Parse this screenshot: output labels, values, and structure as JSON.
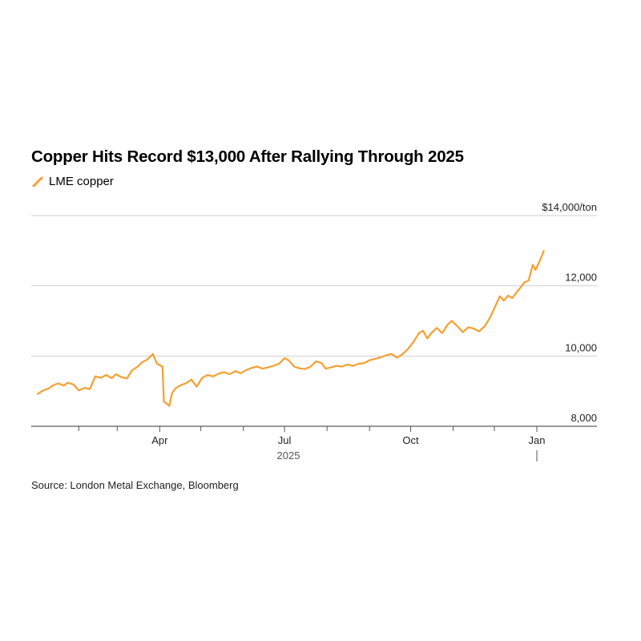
{
  "chart_data": {
    "type": "line",
    "title": "Copper Hits Record $13,000 After Rallying Through 2025",
    "legend": "top-left",
    "unit": "$14,000/ton",
    "ylim": [
      8000,
      14000
    ],
    "y_ticks": [
      {
        "value": 14000,
        "label": "$14,000/ton"
      },
      {
        "value": 12000,
        "label": "12,000"
      },
      {
        "value": 10000,
        "label": "10,000"
      },
      {
        "value": 8000,
        "label": "8,000"
      }
    ],
    "x_ticks": [
      {
        "date": "2025-04-01",
        "label": "Apr"
      },
      {
        "date": "2025-07-01",
        "label": "Jul"
      },
      {
        "date": "2025-10-01",
        "label": "Oct"
      },
      {
        "date": "2026-01-01",
        "label": "Jan"
      }
    ],
    "minor_x_ticks": [
      "2025-02-01",
      "2025-03-01",
      "2025-05-01",
      "2025-06-01",
      "2025-08-01",
      "2025-09-01",
      "2025-11-01",
      "2025-12-01"
    ],
    "year_label": "2025",
    "xlim": [
      "2025-01-02",
      "2026-01-08"
    ],
    "grid": true,
    "series": [
      {
        "name": "LME copper",
        "color": "#f5a030",
        "points": [
          [
            "2025-01-02",
            8920
          ],
          [
            "2025-01-06",
            9020
          ],
          [
            "2025-01-10",
            9080
          ],
          [
            "2025-01-14",
            9180
          ],
          [
            "2025-01-17",
            9220
          ],
          [
            "2025-01-21",
            9160
          ],
          [
            "2025-01-24",
            9240
          ],
          [
            "2025-01-28",
            9190
          ],
          [
            "2025-02-01",
            9020
          ],
          [
            "2025-02-05",
            9090
          ],
          [
            "2025-02-09",
            9060
          ],
          [
            "2025-02-13",
            9420
          ],
          [
            "2025-02-17",
            9380
          ],
          [
            "2025-02-21",
            9460
          ],
          [
            "2025-02-25",
            9370
          ],
          [
            "2025-02-28",
            9480
          ],
          [
            "2025-03-04",
            9400
          ],
          [
            "2025-03-08",
            9360
          ],
          [
            "2025-03-12",
            9600
          ],
          [
            "2025-03-16",
            9700
          ],
          [
            "2025-03-19",
            9820
          ],
          [
            "2025-03-23",
            9900
          ],
          [
            "2025-03-27",
            10060
          ],
          [
            "2025-03-30",
            9780
          ],
          [
            "2025-04-03",
            9700
          ],
          [
            "2025-04-04",
            8700
          ],
          [
            "2025-04-06",
            8650
          ],
          [
            "2025-04-08",
            8580
          ],
          [
            "2025-04-10",
            8950
          ],
          [
            "2025-04-13",
            9100
          ],
          [
            "2025-04-17",
            9180
          ],
          [
            "2025-04-21",
            9240
          ],
          [
            "2025-04-24",
            9330
          ],
          [
            "2025-04-28",
            9130
          ],
          [
            "2025-05-02",
            9380
          ],
          [
            "2025-05-06",
            9460
          ],
          [
            "2025-05-10",
            9420
          ],
          [
            "2025-05-14",
            9500
          ],
          [
            "2025-05-18",
            9540
          ],
          [
            "2025-05-22",
            9480
          ],
          [
            "2025-05-26",
            9570
          ],
          [
            "2025-05-30",
            9510
          ],
          [
            "2025-06-03",
            9600
          ],
          [
            "2025-06-07",
            9660
          ],
          [
            "2025-06-11",
            9700
          ],
          [
            "2025-06-15",
            9640
          ],
          [
            "2025-06-19",
            9680
          ],
          [
            "2025-06-23",
            9720
          ],
          [
            "2025-06-27",
            9780
          ],
          [
            "2025-07-01",
            9940
          ],
          [
            "2025-07-04",
            9880
          ],
          [
            "2025-07-08",
            9700
          ],
          [
            "2025-07-12",
            9650
          ],
          [
            "2025-07-16",
            9630
          ],
          [
            "2025-07-20",
            9700
          ],
          [
            "2025-07-24",
            9850
          ],
          [
            "2025-07-28",
            9800
          ],
          [
            "2025-07-31",
            9640
          ],
          [
            "2025-08-04",
            9680
          ],
          [
            "2025-08-08",
            9720
          ],
          [
            "2025-08-12",
            9700
          ],
          [
            "2025-08-16",
            9760
          ],
          [
            "2025-08-20",
            9720
          ],
          [
            "2025-08-24",
            9780
          ],
          [
            "2025-08-28",
            9800
          ],
          [
            "2025-09-01",
            9880
          ],
          [
            "2025-09-05",
            9920
          ],
          [
            "2025-09-09",
            9960
          ],
          [
            "2025-09-13",
            10020
          ],
          [
            "2025-09-17",
            10060
          ],
          [
            "2025-09-21",
            9950
          ],
          [
            "2025-09-25",
            10050
          ],
          [
            "2025-09-29",
            10200
          ],
          [
            "2025-10-03",
            10400
          ],
          [
            "2025-10-07",
            10650
          ],
          [
            "2025-10-10",
            10720
          ],
          [
            "2025-10-13",
            10500
          ],
          [
            "2025-10-16",
            10650
          ],
          [
            "2025-10-20",
            10800
          ],
          [
            "2025-10-24",
            10650
          ],
          [
            "2025-10-28",
            10900
          ],
          [
            "2025-10-31",
            11000
          ],
          [
            "2025-11-04",
            10850
          ],
          [
            "2025-11-08",
            10680
          ],
          [
            "2025-11-12",
            10820
          ],
          [
            "2025-11-16",
            10780
          ],
          [
            "2025-11-20",
            10700
          ],
          [
            "2025-11-24",
            10850
          ],
          [
            "2025-11-28",
            11100
          ],
          [
            "2025-12-02",
            11450
          ],
          [
            "2025-12-05",
            11700
          ],
          [
            "2025-12-08",
            11580
          ],
          [
            "2025-12-11",
            11720
          ],
          [
            "2025-12-14",
            11650
          ],
          [
            "2025-12-17",
            11800
          ],
          [
            "2025-12-20",
            11950
          ],
          [
            "2025-12-23",
            12100
          ],
          [
            "2025-12-26",
            12150
          ],
          [
            "2025-12-29",
            12600
          ],
          [
            "2025-12-31",
            12450
          ],
          [
            "2026-01-03",
            12700
          ],
          [
            "2026-01-06",
            12990
          ]
        ]
      }
    ]
  },
  "source": "Source: London Metal Exchange, Bloomberg"
}
